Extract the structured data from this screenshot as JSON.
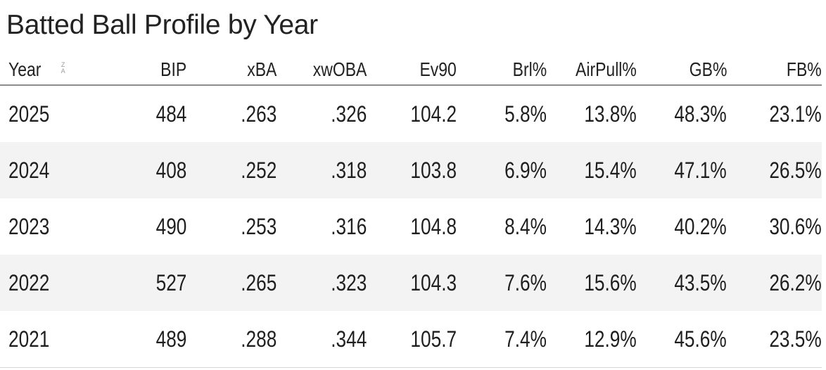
{
  "title": "Batted Ball Profile by Year",
  "sort_icon": {
    "name": "sort-z-a-icon",
    "top": "Z",
    "bottom": "A"
  },
  "columns": [
    "Year",
    "BIP",
    "xBA",
    "xwOBA",
    "Ev90",
    "Brl%",
    "AirPull%",
    "GB%",
    "FB%"
  ],
  "rows": [
    [
      "2025",
      "484",
      ".263",
      ".326",
      "104.2",
      "5.8%",
      "13.8%",
      "48.3%",
      "23.1%"
    ],
    [
      "2024",
      "408",
      ".252",
      ".318",
      "103.8",
      "6.9%",
      "15.4%",
      "47.1%",
      "26.5%"
    ],
    [
      "2023",
      "490",
      ".253",
      ".316",
      "104.8",
      "8.4%",
      "14.3%",
      "40.2%",
      "30.6%"
    ],
    [
      "2022",
      "527",
      ".265",
      ".323",
      "104.3",
      "7.6%",
      "15.6%",
      "43.5%",
      "26.2%"
    ],
    [
      "2021",
      "489",
      ".288",
      ".344",
      "105.7",
      "7.4%",
      "12.9%",
      "45.6%",
      "23.5%"
    ]
  ]
}
